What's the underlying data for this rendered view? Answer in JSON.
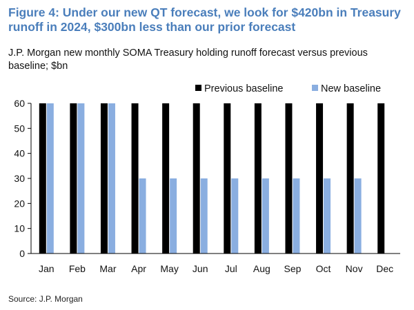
{
  "title": "Figure 4: Under our new QT forecast, we look for $420bn in Treasury runoff in 2024, $300bn less than our prior forecast",
  "subtitle": "J.P. Morgan new monthly SOMA Treasury holding runoff forecast versus previous baseline; $bn",
  "source": "Source: J.P. Morgan",
  "colors": {
    "title": "#4a7ebb",
    "previous": "#000000",
    "new": "#8aaee0"
  },
  "chart_data": {
    "type": "bar",
    "categories": [
      "Jan",
      "Feb",
      "Mar",
      "Apr",
      "May",
      "Jun",
      "Jul",
      "Aug",
      "Sep",
      "Oct",
      "Nov",
      "Dec"
    ],
    "series": [
      {
        "name": "Previous baseline",
        "values": [
          60,
          60,
          60,
          60,
          60,
          60,
          60,
          60,
          60,
          60,
          60,
          60
        ]
      },
      {
        "name": "New baseline",
        "values": [
          60,
          60,
          60,
          30,
          30,
          30,
          30,
          30,
          30,
          30,
          30,
          0
        ]
      }
    ],
    "ylim": [
      0,
      60
    ],
    "yticks": [
      0,
      10,
      20,
      30,
      40,
      50,
      60
    ],
    "xlabel": "",
    "ylabel": "",
    "grid": false,
    "legend": "top-right"
  }
}
